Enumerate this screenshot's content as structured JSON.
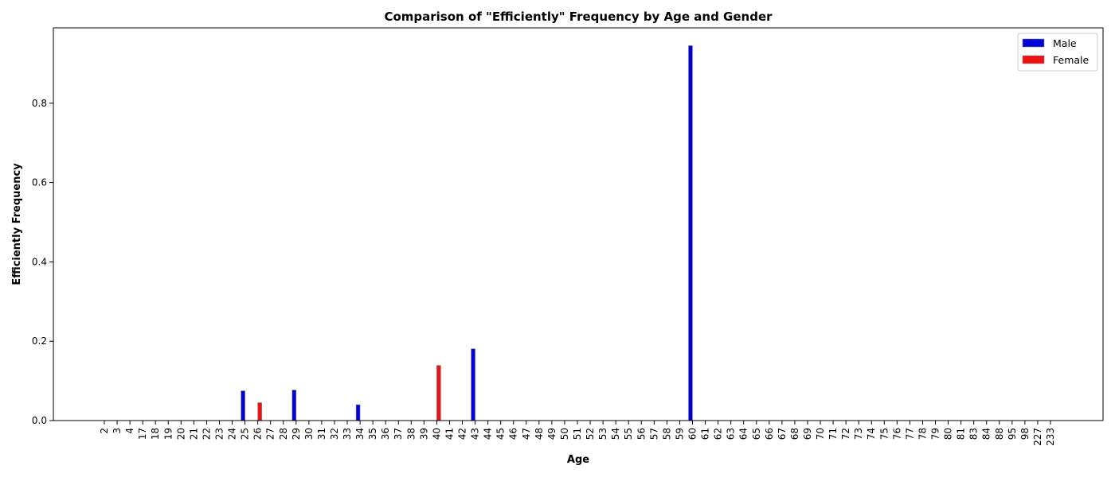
{
  "chart_data": {
    "type": "bar",
    "title": "Comparison of \"Efficiently\" Frequency by Age and Gender",
    "xlabel": "Age",
    "ylabel": "Efficiently Frequency",
    "ylim": [
      0,
      0.99
    ],
    "yticks": [
      0.0,
      0.2,
      0.4,
      0.6,
      0.8
    ],
    "ytick_labels": [
      "0.0",
      "0.2",
      "0.4",
      "0.6",
      "0.8"
    ],
    "grid": false,
    "legend_position": "top-right",
    "categories": [
      "2",
      "3",
      "4",
      "17",
      "18",
      "19",
      "20",
      "21",
      "22",
      "23",
      "24",
      "25",
      "26",
      "27",
      "28",
      "29",
      "30",
      "31",
      "32",
      "33",
      "34",
      "35",
      "36",
      "37",
      "38",
      "39",
      "40",
      "41",
      "42",
      "43",
      "44",
      "45",
      "46",
      "47",
      "48",
      "49",
      "50",
      "51",
      "52",
      "53",
      "54",
      "55",
      "56",
      "57",
      "58",
      "59",
      "60",
      "61",
      "62",
      "63",
      "64",
      "65",
      "66",
      "67",
      "68",
      "69",
      "70",
      "71",
      "72",
      "73",
      "74",
      "75",
      "76",
      "77",
      "78",
      "79",
      "80",
      "81",
      "83",
      "84",
      "88",
      "95",
      "98",
      "227",
      "233"
    ],
    "series": [
      {
        "name": "Male",
        "color": "#0000dd",
        "values": [
          0,
          0,
          0,
          0,
          0,
          0,
          0,
          0,
          0,
          0,
          0,
          0.075,
          0,
          0,
          0,
          0.077,
          0,
          0,
          0,
          0,
          0.04,
          0,
          0,
          0,
          0,
          0,
          0,
          0,
          0,
          0.181,
          0,
          0,
          0,
          0,
          0,
          0,
          0,
          0,
          0,
          0,
          0,
          0,
          0,
          0,
          0,
          0,
          0.945,
          0,
          0,
          0,
          0,
          0,
          0,
          0,
          0,
          0,
          0,
          0,
          0,
          0,
          0,
          0,
          0,
          0,
          0,
          0,
          0,
          0,
          0,
          0,
          0,
          0,
          0,
          0,
          0
        ]
      },
      {
        "name": "Female",
        "color": "#ee1111",
        "values": [
          0,
          0,
          0,
          0,
          0,
          0,
          0,
          0,
          0,
          0,
          0,
          0,
          0.045,
          0,
          0,
          0,
          0,
          0,
          0,
          0,
          0,
          0,
          0,
          0,
          0,
          0,
          0.139,
          0,
          0,
          0,
          0,
          0,
          0,
          0,
          0,
          0,
          0,
          0,
          0,
          0,
          0,
          0,
          0,
          0,
          0,
          0,
          0,
          0,
          0,
          0,
          0,
          0,
          0,
          0,
          0,
          0,
          0,
          0,
          0,
          0,
          0,
          0,
          0,
          0,
          0,
          0,
          0,
          0,
          0,
          0,
          0,
          0,
          0,
          0,
          0
        ]
      }
    ]
  }
}
